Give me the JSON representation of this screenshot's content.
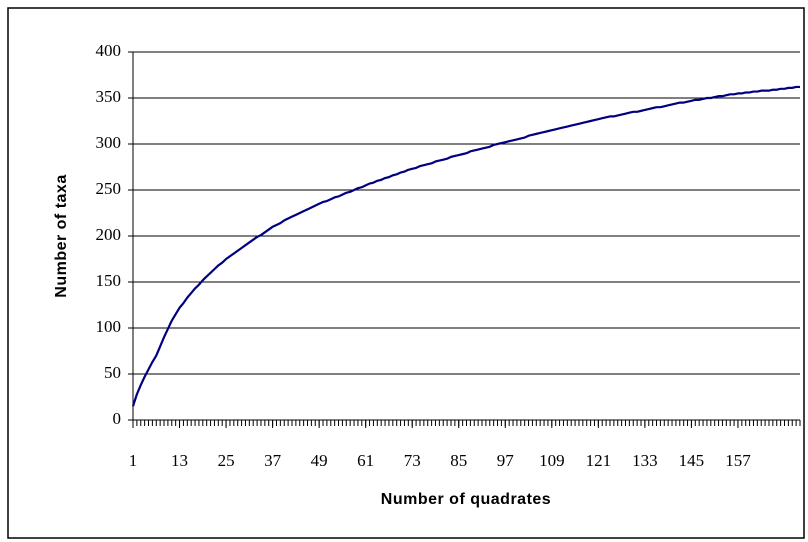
{
  "chart_data": {
    "type": "line",
    "xlabel": "Number of quadrates",
    "ylabel": "Number of taxa",
    "x": [
      1,
      2,
      3,
      4,
      5,
      6,
      7,
      8,
      9,
      10,
      11,
      12,
      13,
      14,
      15,
      16,
      17,
      18,
      19,
      20,
      21,
      22,
      23,
      24,
      25,
      26,
      27,
      28,
      29,
      30,
      31,
      32,
      33,
      34,
      35,
      36,
      37,
      38,
      39,
      40,
      41,
      42,
      43,
      44,
      45,
      46,
      47,
      48,
      49,
      50,
      51,
      52,
      53,
      54,
      55,
      56,
      57,
      58,
      59,
      60,
      61,
      62,
      63,
      64,
      65,
      66,
      67,
      68,
      69,
      70,
      71,
      72,
      73,
      74,
      75,
      76,
      77,
      78,
      79,
      80,
      81,
      82,
      83,
      84,
      85,
      86,
      87,
      88,
      89,
      90,
      91,
      92,
      93,
      94,
      95,
      96,
      97,
      98,
      99,
      100,
      101,
      102,
      103,
      104,
      105,
      106,
      107,
      108,
      109,
      110,
      111,
      112,
      113,
      114,
      115,
      116,
      117,
      118,
      119,
      120,
      121,
      122,
      123,
      124,
      125,
      126,
      127,
      128,
      129,
      130,
      131,
      132,
      133,
      134,
      135,
      136,
      137,
      138,
      139,
      140,
      141,
      142,
      143,
      144,
      145,
      146,
      147,
      148,
      149,
      150,
      151,
      152,
      153,
      154,
      155,
      156,
      157,
      158,
      159,
      160,
      161,
      162,
      163,
      164,
      165,
      166,
      167,
      168,
      169,
      170,
      171,
      172,
      173
    ],
    "series": [
      {
        "color": "#000080",
        "values": [
          15,
          28,
          38,
          47,
          55,
          63,
          70,
          80,
          90,
          99,
          108,
          115,
          122,
          127,
          133,
          138,
          143,
          147,
          152,
          156,
          160,
          164,
          168,
          171,
          175,
          178,
          181,
          184,
          187,
          190,
          193,
          196,
          199,
          201,
          204,
          207,
          210,
          212,
          214,
          217,
          219,
          221,
          223,
          225,
          227,
          229,
          231,
          233,
          235,
          237,
          238,
          240,
          242,
          243,
          245,
          247,
          248,
          250,
          252,
          253,
          255,
          257,
          258,
          260,
          261,
          263,
          264,
          266,
          267,
          269,
          270,
          272,
          273,
          274,
          276,
          277,
          278,
          279,
          281,
          282,
          283,
          284,
          286,
          287,
          288,
          289,
          290,
          292,
          293,
          294,
          295,
          296,
          297,
          299,
          300,
          301,
          302,
          303,
          304,
          305,
          306,
          307,
          309,
          310,
          311,
          312,
          313,
          314,
          315,
          316,
          317,
          318,
          319,
          320,
          321,
          322,
          323,
          324,
          325,
          326,
          327,
          328,
          329,
          330,
          330,
          331,
          332,
          333,
          334,
          335,
          335,
          336,
          337,
          338,
          339,
          340,
          340,
          341,
          342,
          343,
          344,
          345,
          345,
          346,
          347,
          348,
          348,
          349,
          350,
          350,
          351,
          352,
          352,
          353,
          354,
          354,
          355,
          355,
          356,
          356,
          357,
          357,
          358,
          358,
          358,
          359,
          359,
          360,
          360,
          361,
          361,
          362,
          362
        ]
      }
    ],
    "xlim": [
      1,
      173
    ],
    "xticks": [
      1,
      13,
      25,
      37,
      49,
      61,
      73,
      85,
      97,
      109,
      121,
      133,
      145,
      157
    ],
    "ylim": [
      0,
      400
    ],
    "yticks": [
      0,
      50,
      100,
      150,
      200,
      250,
      300,
      350,
      400
    ],
    "grid": true
  }
}
